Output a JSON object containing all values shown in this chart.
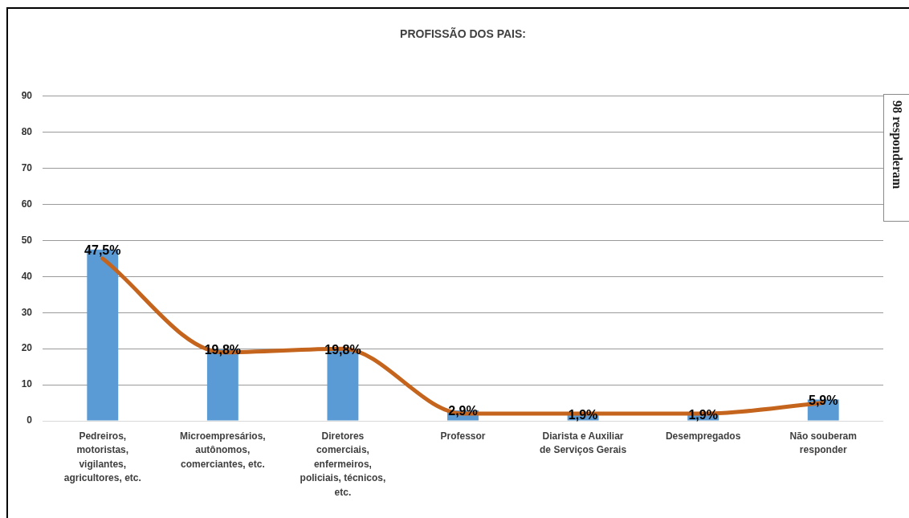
{
  "chart_data": {
    "type": "bar",
    "title": "PROFISSÃO DOS PAIS:",
    "categories": [
      "Pedreiros, motoristas, vigilantes, agricultores, etc.",
      "Microempresários, autônomos, comerciantes, etc.",
      "Diretores comerciais, enfermeiros, policiais, técnicos, etc.",
      "Professor",
      "Diarista e Auxiliar de Serviços Gerais",
      "Desempregados",
      "Não souberam responder"
    ],
    "series": [
      {
        "color": "#5b9bd5",
        "values": [
          47.5,
          19.8,
          19.8,
          2.9,
          1.9,
          1.9,
          5.9
        ],
        "value_labels": [
          "47,5%",
          "19,8%",
          "19,8%",
          "2,9%",
          "1,9%",
          "1,9%",
          "5,9%"
        ]
      },
      {
        "type": "line",
        "color": "#c5641c",
        "values": [
          45,
          19,
          20,
          2,
          2,
          2,
          5
        ]
      }
    ],
    "ylim": [
      0,
      90
    ],
    "yticks": [
      0,
      10,
      20,
      30,
      40,
      50,
      60,
      70,
      80,
      90
    ],
    "grid": "y",
    "annotations": [
      "98 responderam"
    ]
  }
}
